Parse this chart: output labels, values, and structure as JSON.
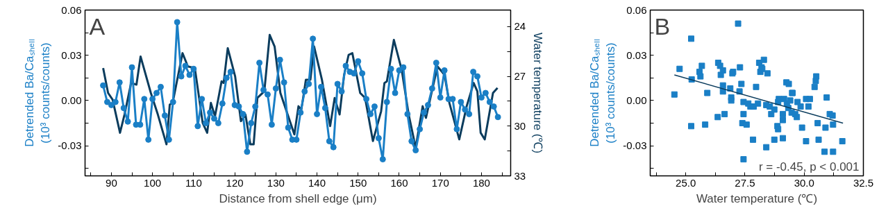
{
  "chart_data": [
    {
      "type": "line",
      "xlabel": "Distance from shell edge (μm)",
      "ylabel": "Detrended Ba/Caₛₕₑₗₗ\n(10³ counts/counts)",
      "y2label": "Water temperature (℃)",
      "annotations": [
        "A"
      ],
      "xlim": [
        83.6,
        187.1
      ],
      "xticks": [
        {
          "value": 85,
          "label": null
        },
        90,
        {
          "value": 95,
          "label": null
        },
        100,
        {
          "value": 105,
          "label": null
        },
        110,
        {
          "value": 115,
          "label": null
        },
        120,
        {
          "value": 125,
          "label": null
        },
        130,
        {
          "value": 135,
          "label": null
        },
        140,
        {
          "value": 145,
          "label": null
        },
        150,
        {
          "value": 155,
          "label": null
        },
        160,
        {
          "value": 165,
          "label": null
        },
        170,
        {
          "value": 175,
          "label": null
        },
        180,
        {
          "value": 185,
          "label": null
        }
      ],
      "ylim": [
        -0.05,
        0.06
      ],
      "yticks": [
        {
          "value": -0.045,
          "label": null
        },
        {
          "value": -0.03,
          "label": "-0.03"
        },
        {
          "value": -0.015,
          "label": null
        },
        {
          "value": 0,
          "label": "0.00"
        },
        {
          "value": 0.015,
          "label": null
        },
        {
          "value": 0.03,
          "label": "0.03"
        },
        {
          "value": 0.045,
          "label": null
        },
        {
          "value": 0.06,
          "label": "0.06"
        }
      ],
      "y2lim": [
        33,
        23
      ],
      "y2ticks": [
        24,
        {
          "value": 25.5,
          "label": null
        },
        27,
        {
          "value": 28.5,
          "label": null
        },
        30,
        {
          "value": 31.5,
          "label": null
        },
        33
      ],
      "grid": false,
      "series": [
        {
          "color": "#0b3c5d",
          "axis": "y2",
          "marker": "none",
          "x": [
            88.0,
            89.2,
            90.3,
            92.1,
            93.2,
            94.8,
            96.1,
            97.1,
            99.6,
            101.3,
            103.4,
            104.2,
            104.9,
            107.3,
            108.6,
            110.3,
            112.2,
            113.3,
            114.2,
            115.2,
            116.8,
            117.3,
            118.3,
            120.1,
            121.5,
            122.6,
            123.8,
            124.6,
            125.5,
            127.2,
            128.5,
            129.7,
            131.1,
            134.5,
            135.5,
            136.2,
            137.3,
            138.4,
            139.3,
            141.2,
            143.2,
            144.3,
            145.5,
            146.6,
            147.7,
            148.6,
            150.5,
            151.7,
            153.6,
            155.6,
            156.4,
            157.0,
            158.7,
            160.6,
            162.3,
            164.0,
            165.7,
            166.5,
            169.3,
            171.0,
            172.2,
            174.6,
            176.4,
            178.1,
            179.0,
            179.8,
            180.8,
            182.8,
            183.9
          ],
          "values": [
            26.5,
            28.0,
            28.4,
            30.4,
            29.3,
            27.4,
            27.5,
            25.8,
            28.0,
            29.3,
            31.1,
            28.7,
            28.6,
            25.6,
            26.4,
            26.5,
            29.8,
            30.4,
            28.6,
            29.4,
            27.3,
            27.4,
            25.3,
            27.0,
            29.7,
            29.3,
            31.1,
            31.1,
            28.3,
            27.9,
            24.5,
            25.2,
            28.0,
            30.5,
            28.8,
            29.0,
            27.2,
            27.2,
            25.2,
            27.2,
            30.0,
            28.3,
            29.3,
            26.9,
            25.7,
            25.6,
            28.0,
            28.3,
            30.9,
            29.1,
            27.4,
            27.3,
            24.8,
            26.6,
            29.3,
            31.3,
            28.8,
            29.5,
            26.4,
            26.9,
            28.6,
            30.8,
            28.8,
            27.4,
            27.9,
            30.4,
            30.8,
            28.0,
            27.7
          ]
        },
        {
          "color": "#1a7fc6",
          "marker": "circle",
          "x": [
            88,
            89,
            90,
            91,
            92,
            93,
            94,
            95,
            96,
            97,
            98,
            99,
            100,
            101,
            102,
            103,
            104,
            105,
            106,
            107,
            108,
            109,
            110,
            111,
            112,
            113,
            114,
            115,
            116,
            117,
            118,
            119,
            120,
            121,
            122,
            123,
            124,
            125,
            126,
            127,
            128,
            129,
            130,
            131,
            132,
            133,
            134,
            135,
            136,
            137,
            138,
            139,
            140,
            141,
            142,
            143,
            144,
            145,
            146,
            147,
            148,
            149,
            150,
            151,
            152,
            153,
            154,
            155,
            156,
            157,
            158,
            159,
            160,
            161,
            162,
            163,
            164,
            165,
            166,
            167,
            168,
            169,
            170,
            171,
            172,
            173,
            174,
            175,
            176,
            177,
            178,
            179,
            180,
            181,
            182,
            183,
            184
          ],
          "values": [
            0.01,
            -0.001,
            -0.003,
            -0.001,
            0.012,
            -0.005,
            -0.014,
            0.022,
            -0.016,
            -0.016,
            0.001,
            -0.026,
            0.001,
            0.005,
            0.009,
            -0.01,
            -0.026,
            -0.001,
            0.052,
            0.016,
            0.023,
            0.017,
            0.021,
            -0.017,
            0.001,
            -0.015,
            -0.008,
            -0.012,
            -0.015,
            -0.002,
            0.015,
            0.019,
            -0.003,
            -0.004,
            -0.009,
            -0.034,
            -0.015,
            -0.004,
            0.025,
            0.007,
            0.004,
            -0.016,
            0.008,
            0.027,
            0.012,
            -0.018,
            -0.026,
            -0.026,
            -0.008,
            0.006,
            0.011,
            0.041,
            -0.009,
            0.009,
            -0.005,
            -0.027,
            -0.031,
            0.011,
            0.006,
            0.023,
            0.019,
            0.018,
            0.026,
            0.018,
            0.001,
            -0.009,
            -0.004,
            -0.025,
            -0.039,
            -0.001,
            0.021,
            0.005,
            0.02,
            0.022,
            -0.009,
            -0.027,
            -0.033,
            -0.019,
            -0.008,
            -0.003,
            0.008,
            0.025,
            0.002,
            0.02,
            0.001,
            0.001,
            -0.019,
            -0.001,
            -0.006,
            -0.009,
            0.019,
            0.016,
            0.002,
            0.005,
            -0.001,
            -0.004,
            -0.011
          ]
        }
      ]
    },
    {
      "type": "scatter",
      "xlabel": "Water temperature (℃)",
      "ylabel": "Detrended Ba/Caₛₕₑₗₗ\n(10³ counts/counts)",
      "annotations": [
        "B",
        "r = -0.45, p < 0.001"
      ],
      "xlim": [
        23.5,
        32.5
      ],
      "xticks": [
        {
          "value": 23.75,
          "label": null
        },
        {
          "value": 25,
          "label": "25.0"
        },
        {
          "value": 26.25,
          "label": null
        },
        27.5,
        {
          "value": 28.75,
          "label": null
        },
        {
          "value": 30,
          "label": "30.0"
        },
        {
          "value": 31.25,
          "label": null
        },
        32.5
      ],
      "ylim": [
        -0.05,
        0.06
      ],
      "yticks": [
        {
          "value": -0.045,
          "label": null
        },
        {
          "value": -0.03,
          "label": "-0.03"
        },
        {
          "value": -0.015,
          "label": null
        },
        {
          "value": 0,
          "label": "0.00"
        },
        {
          "value": 0.015,
          "label": null
        },
        {
          "value": 0.03,
          "label": "0.03"
        },
        {
          "value": 0.045,
          "label": null
        },
        {
          "value": 0.06,
          "label": "0.06"
        }
      ],
      "grid": false,
      "series": [
        {
          "color": "#1a7fc6",
          "marker": "square",
          "x": [
            24.52,
            24.74,
            25.23,
            25.25,
            25.23,
            25.58,
            25.62,
            25.68,
            25.91,
            25.82,
            26.37,
            26.45,
            26.48,
            26.57,
            26.57,
            26.57,
            26.35,
            26.64,
            26.88,
            26.92,
            26.92,
            26.97,
            27.0,
            27.21,
            27.29,
            27.35,
            27.27,
            27.44,
            27.44,
            27.39,
            27.44,
            27.57,
            27.64,
            27.73,
            27.83,
            27.87,
            27.97,
            27.84,
            28.05,
            28.1,
            28.15,
            28.2,
            28.3,
            28.23,
            28.4,
            28.45,
            28.4,
            28.55,
            28.61,
            28.74,
            28.74,
            28.87,
            28.9,
            28.9,
            28.93,
            29.1,
            29.1,
            29.1,
            29.15,
            29.25,
            29.35,
            29.27,
            29.33,
            29.41,
            29.47,
            29.49,
            29.51,
            29.62,
            29.69,
            29.72,
            29.85,
            29.91,
            30.08,
            30.08,
            30.18,
            30.24,
            30.44,
            30.49,
            30.51,
            30.57,
            30.61,
            30.86,
            30.9,
            30.95,
            31.08,
            31.2,
            31.22,
            31.22,
            31.61
          ],
          "values": [
            0.004,
            0.021,
            0.041,
            0.014,
            -0.017,
            0.019,
            0.016,
            0.023,
            0.005,
            -0.016,
            0.025,
            0.023,
            0.017,
            0.02,
            0.01,
            0.006,
            -0.011,
            -0.009,
            0.008,
            0.002,
            0.0,
            0.018,
            0.019,
            0.051,
            0.022,
            0.011,
            0.006,
            -0.001,
            -0.009,
            -0.015,
            -0.039,
            -0.016,
            -0.002,
            -0.004,
            -0.004,
            -0.004,
            0.009,
            -0.026,
            -0.002,
            0.025,
            0.019,
            0.022,
            0.027,
            0.021,
            -0.031,
            0.018,
            -0.003,
            -0.004,
            -0.009,
            -0.006,
            -0.026,
            -0.017,
            -0.019,
            -0.001,
            0.001,
            -0.025,
            -0.013,
            -0.009,
            0.001,
            0.012,
            0.011,
            -0.002,
            -0.005,
            0.0,
            -0.008,
            0.005,
            0.005,
            -0.009,
            -0.011,
            -0.001,
            -0.004,
            -0.018,
            -0.027,
            0.001,
            -0.004,
            0.001,
            0.009,
            0.013,
            0.016,
            -0.015,
            -0.026,
            -0.034,
            -0.018,
            0.002,
            -0.009,
            -0.01,
            -0.016,
            -0.034,
            -0.027
          ]
        },
        {
          "type": "line",
          "color": "#0b3c5d",
          "marker": "none",
          "x": [
            24.52,
            31.64
          ],
          "values": [
            0.017,
            -0.015
          ]
        }
      ]
    }
  ]
}
